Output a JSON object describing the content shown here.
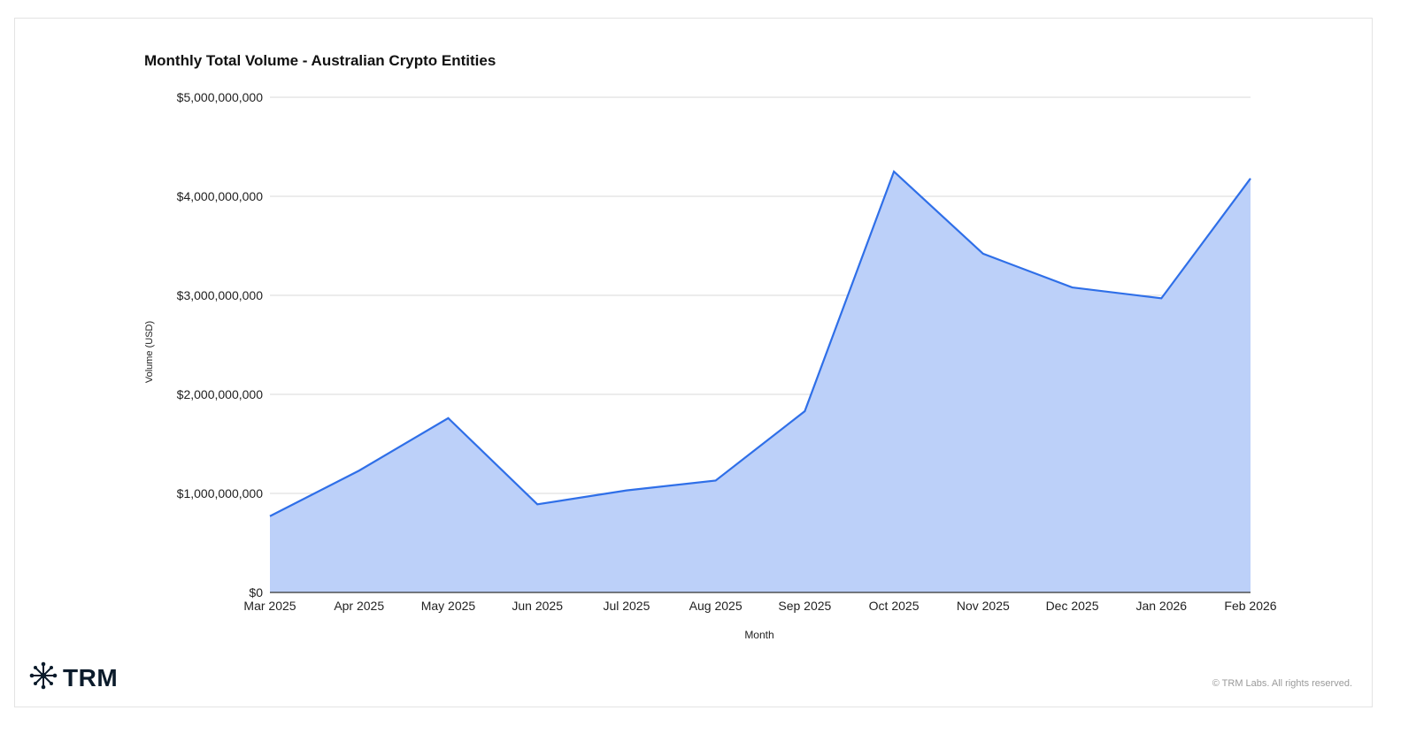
{
  "chart_data": {
    "type": "area",
    "title": "Monthly Total Volume - Australian Crypto Entities",
    "xlabel": "Month",
    "ylabel": "Volume (USD)",
    "categories": [
      "Mar 2025",
      "Apr 2025",
      "May 2025",
      "Jun 2025",
      "Jul 2025",
      "Aug 2025",
      "Sep 2025",
      "Oct 2025",
      "Nov 2025",
      "Dec 2025",
      "Jan 2026",
      "Feb 2026"
    ],
    "values": [
      770000000,
      1230000000,
      1760000000,
      890000000,
      1030000000,
      1130000000,
      1830000000,
      4250000000,
      3420000000,
      3080000000,
      2970000000,
      4180000000
    ],
    "ylim": [
      0,
      5000000000
    ],
    "yticks": [
      0,
      1000000000,
      2000000000,
      3000000000,
      4000000000,
      5000000000
    ],
    "ytick_labels": [
      "$0",
      "$1,000,000,000",
      "$2,000,000,000",
      "$3,000,000,000",
      "$4,000,000,000",
      "$5,000,000,000"
    ],
    "grid": true,
    "line_color": "#2f6fe8",
    "fill_color": "#bcd0f9"
  },
  "branding": {
    "logo_text": "TRM",
    "logo_icon": "network-star-icon",
    "copyright": "© TRM Labs. All rights reserved."
  }
}
